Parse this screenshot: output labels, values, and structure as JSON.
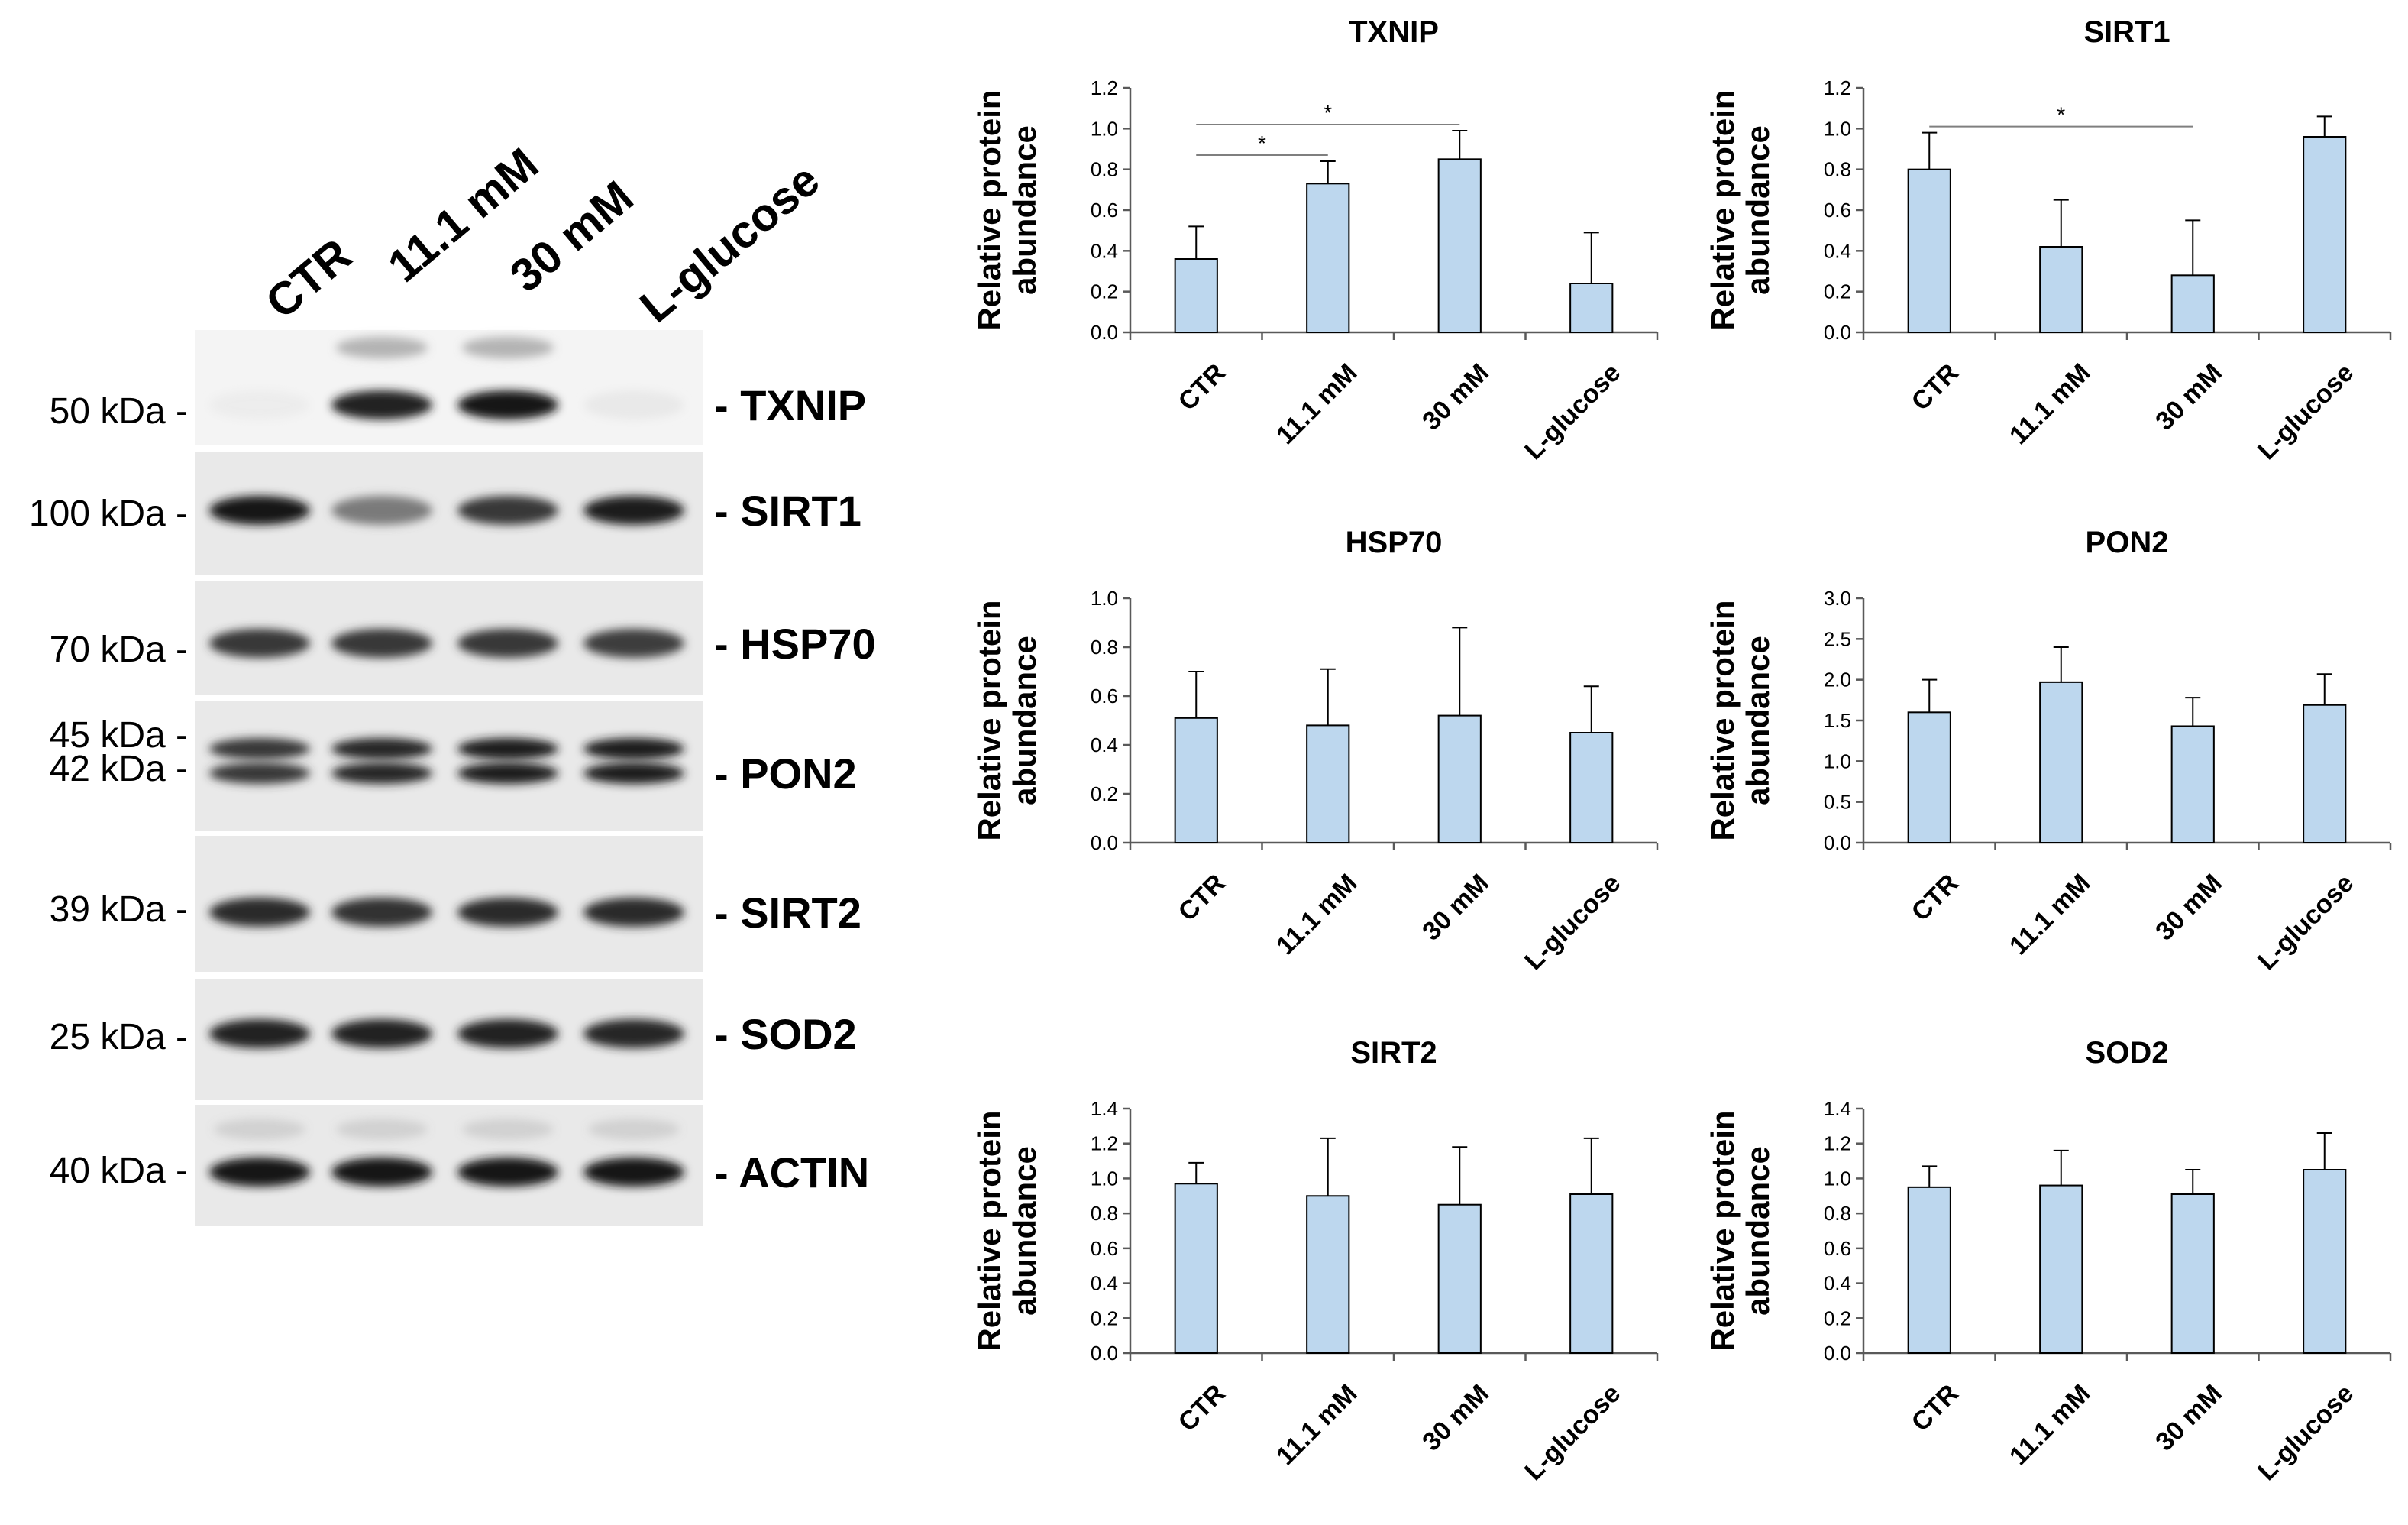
{
  "blot": {
    "lanes": [
      "CTR",
      "11.1 mM",
      "30 mM",
      "L-glucose"
    ],
    "rows": [
      {
        "protein": "TXNIP",
        "markers": [
          "50 kDa"
        ],
        "intensity": [
          0.05,
          0.9,
          0.95,
          0.08
        ]
      },
      {
        "protein": "SIRT1",
        "markers": [
          "100 kDa"
        ],
        "intensity": [
          0.95,
          0.55,
          0.8,
          0.92
        ]
      },
      {
        "protein": "HSP70",
        "markers": [
          "70 kDa"
        ],
        "intensity": [
          0.8,
          0.8,
          0.8,
          0.78
        ]
      },
      {
        "protein": "PON2",
        "markers": [
          "45 kDa",
          "42 kDa"
        ],
        "intensity": [
          0.8,
          0.88,
          0.92,
          0.92
        ]
      },
      {
        "protein": "SIRT2",
        "markers": [
          "39 kDa"
        ],
        "intensity": [
          0.85,
          0.82,
          0.85,
          0.85
        ]
      },
      {
        "protein": "SOD2",
        "markers": [
          "25 kDa"
        ],
        "intensity": [
          0.9,
          0.9,
          0.9,
          0.88
        ]
      },
      {
        "protein": "ACTIN",
        "markers": [
          "40 kDa"
        ],
        "intensity": [
          0.95,
          0.95,
          0.95,
          0.95
        ]
      }
    ]
  },
  "chart_data": [
    {
      "type": "bar",
      "title": "TXNIP",
      "categories": [
        "CTR",
        "11.1 mM",
        "30 mM",
        "L-glucose"
      ],
      "values": [
        0.36,
        0.73,
        0.85,
        0.24
      ],
      "errors": [
        0.16,
        0.11,
        0.14,
        0.25
      ],
      "ylabel": "Relative protein abundance",
      "ylim": [
        0,
        1.2
      ],
      "yticks": [
        "0.0",
        "0.2",
        "0.4",
        "0.6",
        "0.8",
        "1.0",
        "1.2"
      ],
      "significance": [
        {
          "from": 0,
          "to": 1,
          "y": 0.87,
          "label": "*"
        },
        {
          "from": 0,
          "to": 2,
          "y": 1.02,
          "label": "*"
        }
      ],
      "bar_color": "#bdd7ee"
    },
    {
      "type": "bar",
      "title": "SIRT1",
      "categories": [
        "CTR",
        "11.1 mM",
        "30 mM",
        "L-glucose"
      ],
      "values": [
        0.8,
        0.42,
        0.28,
        0.96
      ],
      "errors": [
        0.18,
        0.23,
        0.27,
        0.1
      ],
      "ylabel": "Relative protein abundance",
      "ylim": [
        0,
        1.2
      ],
      "yticks": [
        "0.0",
        "0.2",
        "0.4",
        "0.6",
        "0.8",
        "1.0",
        "1.2"
      ],
      "significance": [
        {
          "from": 0,
          "to": 2,
          "y": 1.01,
          "label": "*"
        }
      ],
      "bar_color": "#bdd7ee"
    },
    {
      "type": "bar",
      "title": "HSP70",
      "categories": [
        "CTR",
        "11.1 mM",
        "30 mM",
        "L-glucose"
      ],
      "values": [
        0.51,
        0.48,
        0.52,
        0.45
      ],
      "errors": [
        0.19,
        0.23,
        0.36,
        0.19
      ],
      "ylabel": "Relative protein abundance",
      "ylim": [
        0,
        1.0
      ],
      "yticks": [
        "0.0",
        "0.2",
        "0.4",
        "0.6",
        "0.8",
        "1.0"
      ],
      "significance": [],
      "bar_color": "#bdd7ee"
    },
    {
      "type": "bar",
      "title": "PON2",
      "categories": [
        "CTR",
        "11.1 mM",
        "30 mM",
        "L-glucose"
      ],
      "values": [
        1.6,
        1.97,
        1.43,
        1.69
      ],
      "errors": [
        0.4,
        0.43,
        0.35,
        0.38
      ],
      "ylabel": "Relative protein abundance",
      "ylim": [
        0,
        3.0
      ],
      "yticks": [
        "0.0",
        "0.5",
        "1.0",
        "1.5",
        "2.0",
        "2.5",
        "3.0"
      ],
      "significance": [],
      "bar_color": "#bdd7ee"
    },
    {
      "type": "bar",
      "title": "SIRT2",
      "categories": [
        "CTR",
        "11.1 mM",
        "30 mM",
        "L-glucose"
      ],
      "values": [
        0.97,
        0.9,
        0.85,
        0.91
      ],
      "errors": [
        0.12,
        0.33,
        0.33,
        0.32
      ],
      "ylabel": "Relative protein abundance",
      "ylim": [
        0,
        1.4
      ],
      "yticks": [
        "0.0",
        "0.2",
        "0.4",
        "0.6",
        "0.8",
        "1.0",
        "1.2",
        "1.4"
      ],
      "significance": [],
      "bar_color": "#bdd7ee"
    },
    {
      "type": "bar",
      "title": "SOD2",
      "categories": [
        "CTR",
        "11.1 mM",
        "30 mM",
        "L-glucose"
      ],
      "values": [
        0.95,
        0.96,
        0.91,
        1.05
      ],
      "errors": [
        0.12,
        0.2,
        0.14,
        0.21
      ],
      "ylabel": "Relative protein abundance",
      "ylim": [
        0,
        1.4
      ],
      "yticks": [
        "0.0",
        "0.2",
        "0.4",
        "0.6",
        "0.8",
        "1.0",
        "1.2",
        "1.4"
      ],
      "significance": [],
      "bar_color": "#bdd7ee"
    }
  ]
}
